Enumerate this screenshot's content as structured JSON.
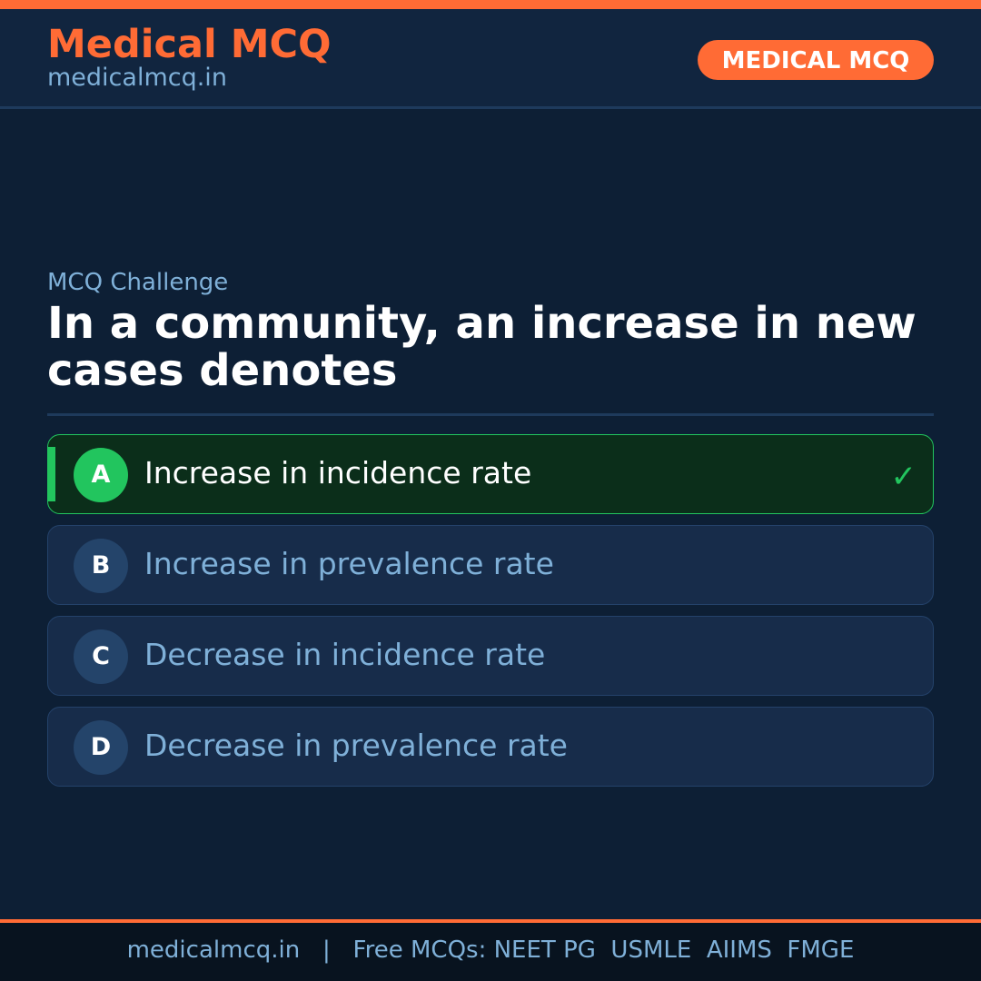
{
  "header": {
    "brand": "Medical MCQ",
    "site": "medicalmcq.in",
    "badge": "MEDICAL MCQ"
  },
  "colors": {
    "accent": "#ff6b35",
    "correct": "#22c55e",
    "background": "#0d1f35"
  },
  "main": {
    "label": "MCQ Challenge",
    "question": "In a community, an increase in new cases denotes",
    "options": [
      {
        "letter": "A",
        "text": "Increase in incidence rate",
        "correct": true
      },
      {
        "letter": "B",
        "text": "Increase in prevalence rate",
        "correct": false
      },
      {
        "letter": "C",
        "text": "Decrease in incidence rate",
        "correct": false
      },
      {
        "letter": "D",
        "text": "Decrease in prevalence rate",
        "correct": false
      }
    ],
    "check_icon": "checkmark-icon"
  },
  "footer": {
    "text": "medicalmcq.in   |   Free MCQs: NEET PG  USMLE  AIIMS  FMGE"
  }
}
